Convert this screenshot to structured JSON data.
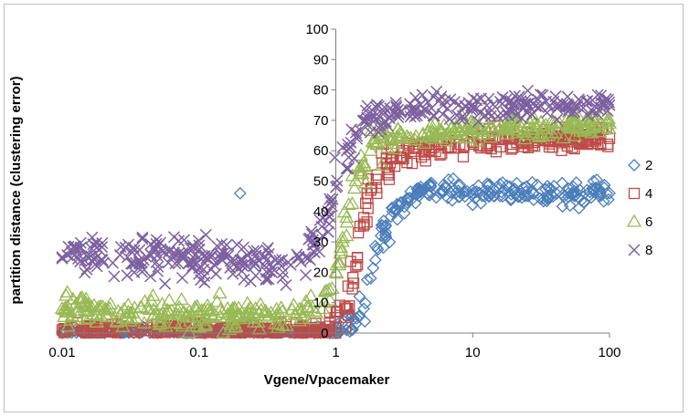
{
  "chart_data": {
    "type": "scatter",
    "title": "",
    "xlabel": "Vgene/Vpacemaker",
    "ylabel": "partition distance (clustering error)",
    "x_scale": "log",
    "xlim": [
      0.01,
      100
    ],
    "ylim": [
      0,
      100
    ],
    "x_ticks": [
      "0.01",
      "0.1",
      "1",
      "10",
      "100"
    ],
    "y_ticks": [
      "0",
      "10",
      "20",
      "30",
      "40",
      "50",
      "60",
      "70",
      "80",
      "90",
      "100"
    ],
    "grid": false,
    "legend_position": "right",
    "series": [
      {
        "name": "2",
        "marker": "diamond",
        "color": "#4a7ebb",
        "data": [
          [
            0.01,
            0
          ],
          [
            0.05,
            0
          ],
          [
            0.2,
            0
          ],
          [
            0.5,
            0
          ],
          [
            0.9,
            0
          ],
          [
            1.0,
            0
          ],
          [
            1.2,
            1
          ],
          [
            1.4,
            3
          ],
          [
            1.6,
            8
          ],
          [
            1.8,
            18
          ],
          [
            2.0,
            28
          ],
          [
            2.3,
            35
          ],
          [
            2.6,
            40
          ],
          [
            3.0,
            43
          ],
          [
            4.0,
            46
          ],
          [
            6.0,
            47
          ],
          [
            10.0,
            47
          ],
          [
            20.0,
            47
          ],
          [
            50.0,
            46
          ],
          [
            100.0,
            46
          ]
        ],
        "outliers": [
          [
            0.2,
            46
          ]
        ]
      },
      {
        "name": "4",
        "marker": "square",
        "color": "#be4b48",
        "data": [
          [
            0.01,
            1
          ],
          [
            0.05,
            1
          ],
          [
            0.2,
            1
          ],
          [
            0.5,
            1
          ],
          [
            0.8,
            1
          ],
          [
            1.0,
            2
          ],
          [
            1.2,
            8
          ],
          [
            1.4,
            22
          ],
          [
            1.6,
            38
          ],
          [
            1.8,
            47
          ],
          [
            2.0,
            52
          ],
          [
            2.5,
            56
          ],
          [
            3.0,
            58
          ],
          [
            5.0,
            61
          ],
          [
            10.0,
            63
          ],
          [
            20.0,
            64
          ],
          [
            50.0,
            64
          ],
          [
            100.0,
            64
          ]
        ]
      },
      {
        "name": "6",
        "marker": "triangle",
        "color": "#98b954",
        "data": [
          [
            0.01,
            8
          ],
          [
            0.05,
            6
          ],
          [
            0.2,
            6
          ],
          [
            0.5,
            6
          ],
          [
            0.8,
            8
          ],
          [
            1.0,
            20
          ],
          [
            1.2,
            38
          ],
          [
            1.4,
            50
          ],
          [
            1.6,
            56
          ],
          [
            1.8,
            60
          ],
          [
            2.0,
            62
          ],
          [
            2.5,
            64
          ],
          [
            3.0,
            65
          ],
          [
            5.0,
            66
          ],
          [
            10.0,
            67
          ],
          [
            20.0,
            68
          ],
          [
            50.0,
            68
          ],
          [
            100.0,
            69
          ]
        ]
      },
      {
        "name": "8",
        "marker": "x",
        "color": "#7d60a0",
        "data": [
          [
            0.01,
            25
          ],
          [
            0.03,
            25
          ],
          [
            0.1,
            25
          ],
          [
            0.2,
            24
          ],
          [
            0.4,
            22
          ],
          [
            0.6,
            25
          ],
          [
            0.8,
            32
          ],
          [
            1.0,
            48
          ],
          [
            1.2,
            60
          ],
          [
            1.4,
            66
          ],
          [
            1.6,
            70
          ],
          [
            2.0,
            72
          ],
          [
            3.0,
            73
          ],
          [
            5.0,
            74
          ],
          [
            10.0,
            74
          ],
          [
            20.0,
            75
          ],
          [
            50.0,
            75
          ],
          [
            100.0,
            75
          ]
        ]
      }
    ]
  }
}
